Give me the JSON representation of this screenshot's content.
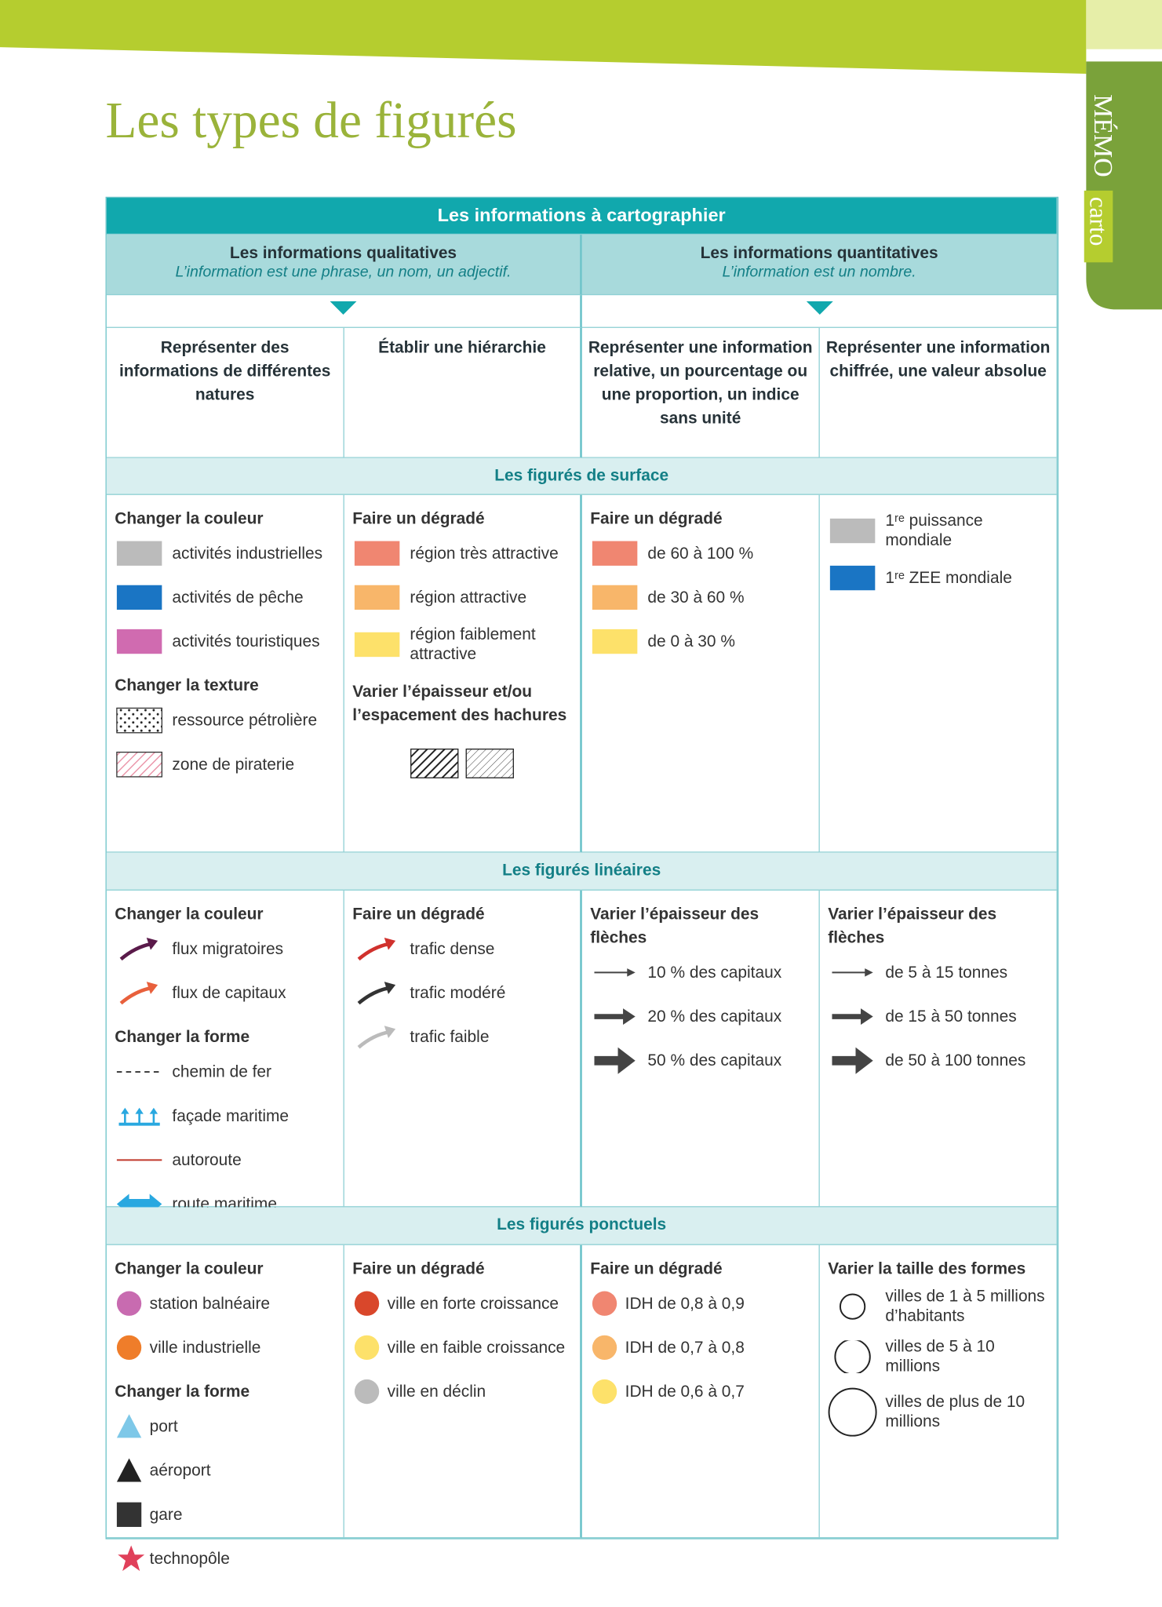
{
  "header": {
    "title": "Les types de figurés",
    "tab": [
      "MÉMO",
      "carto"
    ]
  },
  "table": {
    "title": "Les informations à cartographier",
    "groups": [
      {
        "title": "Les informations qualitatives",
        "subtitle": "L’information est une phrase, un nom, un adjectif."
      },
      {
        "title": "Les informations quantitatives",
        "subtitle": "L’information est un nombre."
      }
    ],
    "columns": [
      "Représenter des informations de différentes natures",
      "Établir une hiérarchie",
      "Représenter une information relative, un pourcentage ou une proportion, un indice sans unité",
      "Représenter une information chiffrée, une valeur absolue"
    ],
    "sections": [
      {
        "title": "Les figurés de surface",
        "cells": [
          [
            {
              "heading": "Changer la couleur",
              "items": [
                "activités industrielles",
                "activités de pêche",
                "activités touristiques"
              ]
            },
            {
              "heading": "Changer la texture",
              "items": [
                "ressource pétrolière",
                "zone de piraterie"
              ]
            }
          ],
          [
            {
              "heading": "Faire un dégradé",
              "items": [
                "région très attractive",
                "région attractive",
                "région faiblement attractive"
              ]
            },
            {
              "heading": "Varier l’épaisseur et/ou l’espacement des hachures",
              "items": []
            }
          ],
          [
            {
              "heading": "Faire un dégradé",
              "items": [
                "de 60 à 100 %",
                "de 30 à 60 %",
                "de 0 à 30 %"
              ]
            }
          ],
          [
            {
              "items": [
                "1ʳᵉ puissance mondiale",
                "1ʳᵉ ZEE mondiale"
              ]
            }
          ]
        ]
      },
      {
        "title": "Les figurés linéaires",
        "cells": [
          [
            {
              "heading": "Changer la couleur",
              "items": [
                "flux migratoires",
                "flux de capitaux"
              ]
            },
            {
              "heading": "Changer la forme",
              "items": [
                "chemin de fer",
                "façade maritime",
                "autoroute",
                "route maritime"
              ]
            }
          ],
          [
            {
              "heading": "Faire un dégradé",
              "items": [
                "trafic dense",
                "trafic modéré",
                "trafic faible"
              ]
            }
          ],
          [
            {
              "heading": "Varier l’épaisseur des flèches",
              "items": [
                "10 % des capitaux",
                "20 % des capitaux",
                "50 % des capitaux"
              ]
            }
          ],
          [
            {
              "heading": "Varier l’épaisseur des flèches",
              "items": [
                "de 5 à 15 tonnes",
                "de 15 à 50 tonnes",
                "de 50 à 100 tonnes"
              ]
            }
          ]
        ]
      },
      {
        "title": "Les figurés ponctuels",
        "cells": [
          [
            {
              "heading": "Changer la couleur",
              "items": [
                "station balnéaire",
                "ville industrielle"
              ]
            },
            {
              "heading": "Changer la forme",
              "items": [
                "port",
                "aéroport",
                "gare",
                "technopôle"
              ]
            }
          ],
          [
            {
              "heading": "Faire un dégradé",
              "items": [
                "ville en forte croissance",
                "ville en faible croissance",
                "ville en déclin"
              ]
            }
          ],
          [
            {
              "heading": "Faire un dégradé",
              "items": [
                "IDH de 0,8 à 0,9",
                "IDH de 0,7 à 0,8",
                "IDH de 0,6 à 0,7"
              ]
            }
          ],
          [
            {
              "heading": "Varier la taille des formes",
              "items": [
                "villes de 1 à 5 millions d’habitants",
                "villes de 5 à 10 millions",
                "villes de plus de 10 millions"
              ]
            }
          ]
        ]
      }
    ]
  }
}
